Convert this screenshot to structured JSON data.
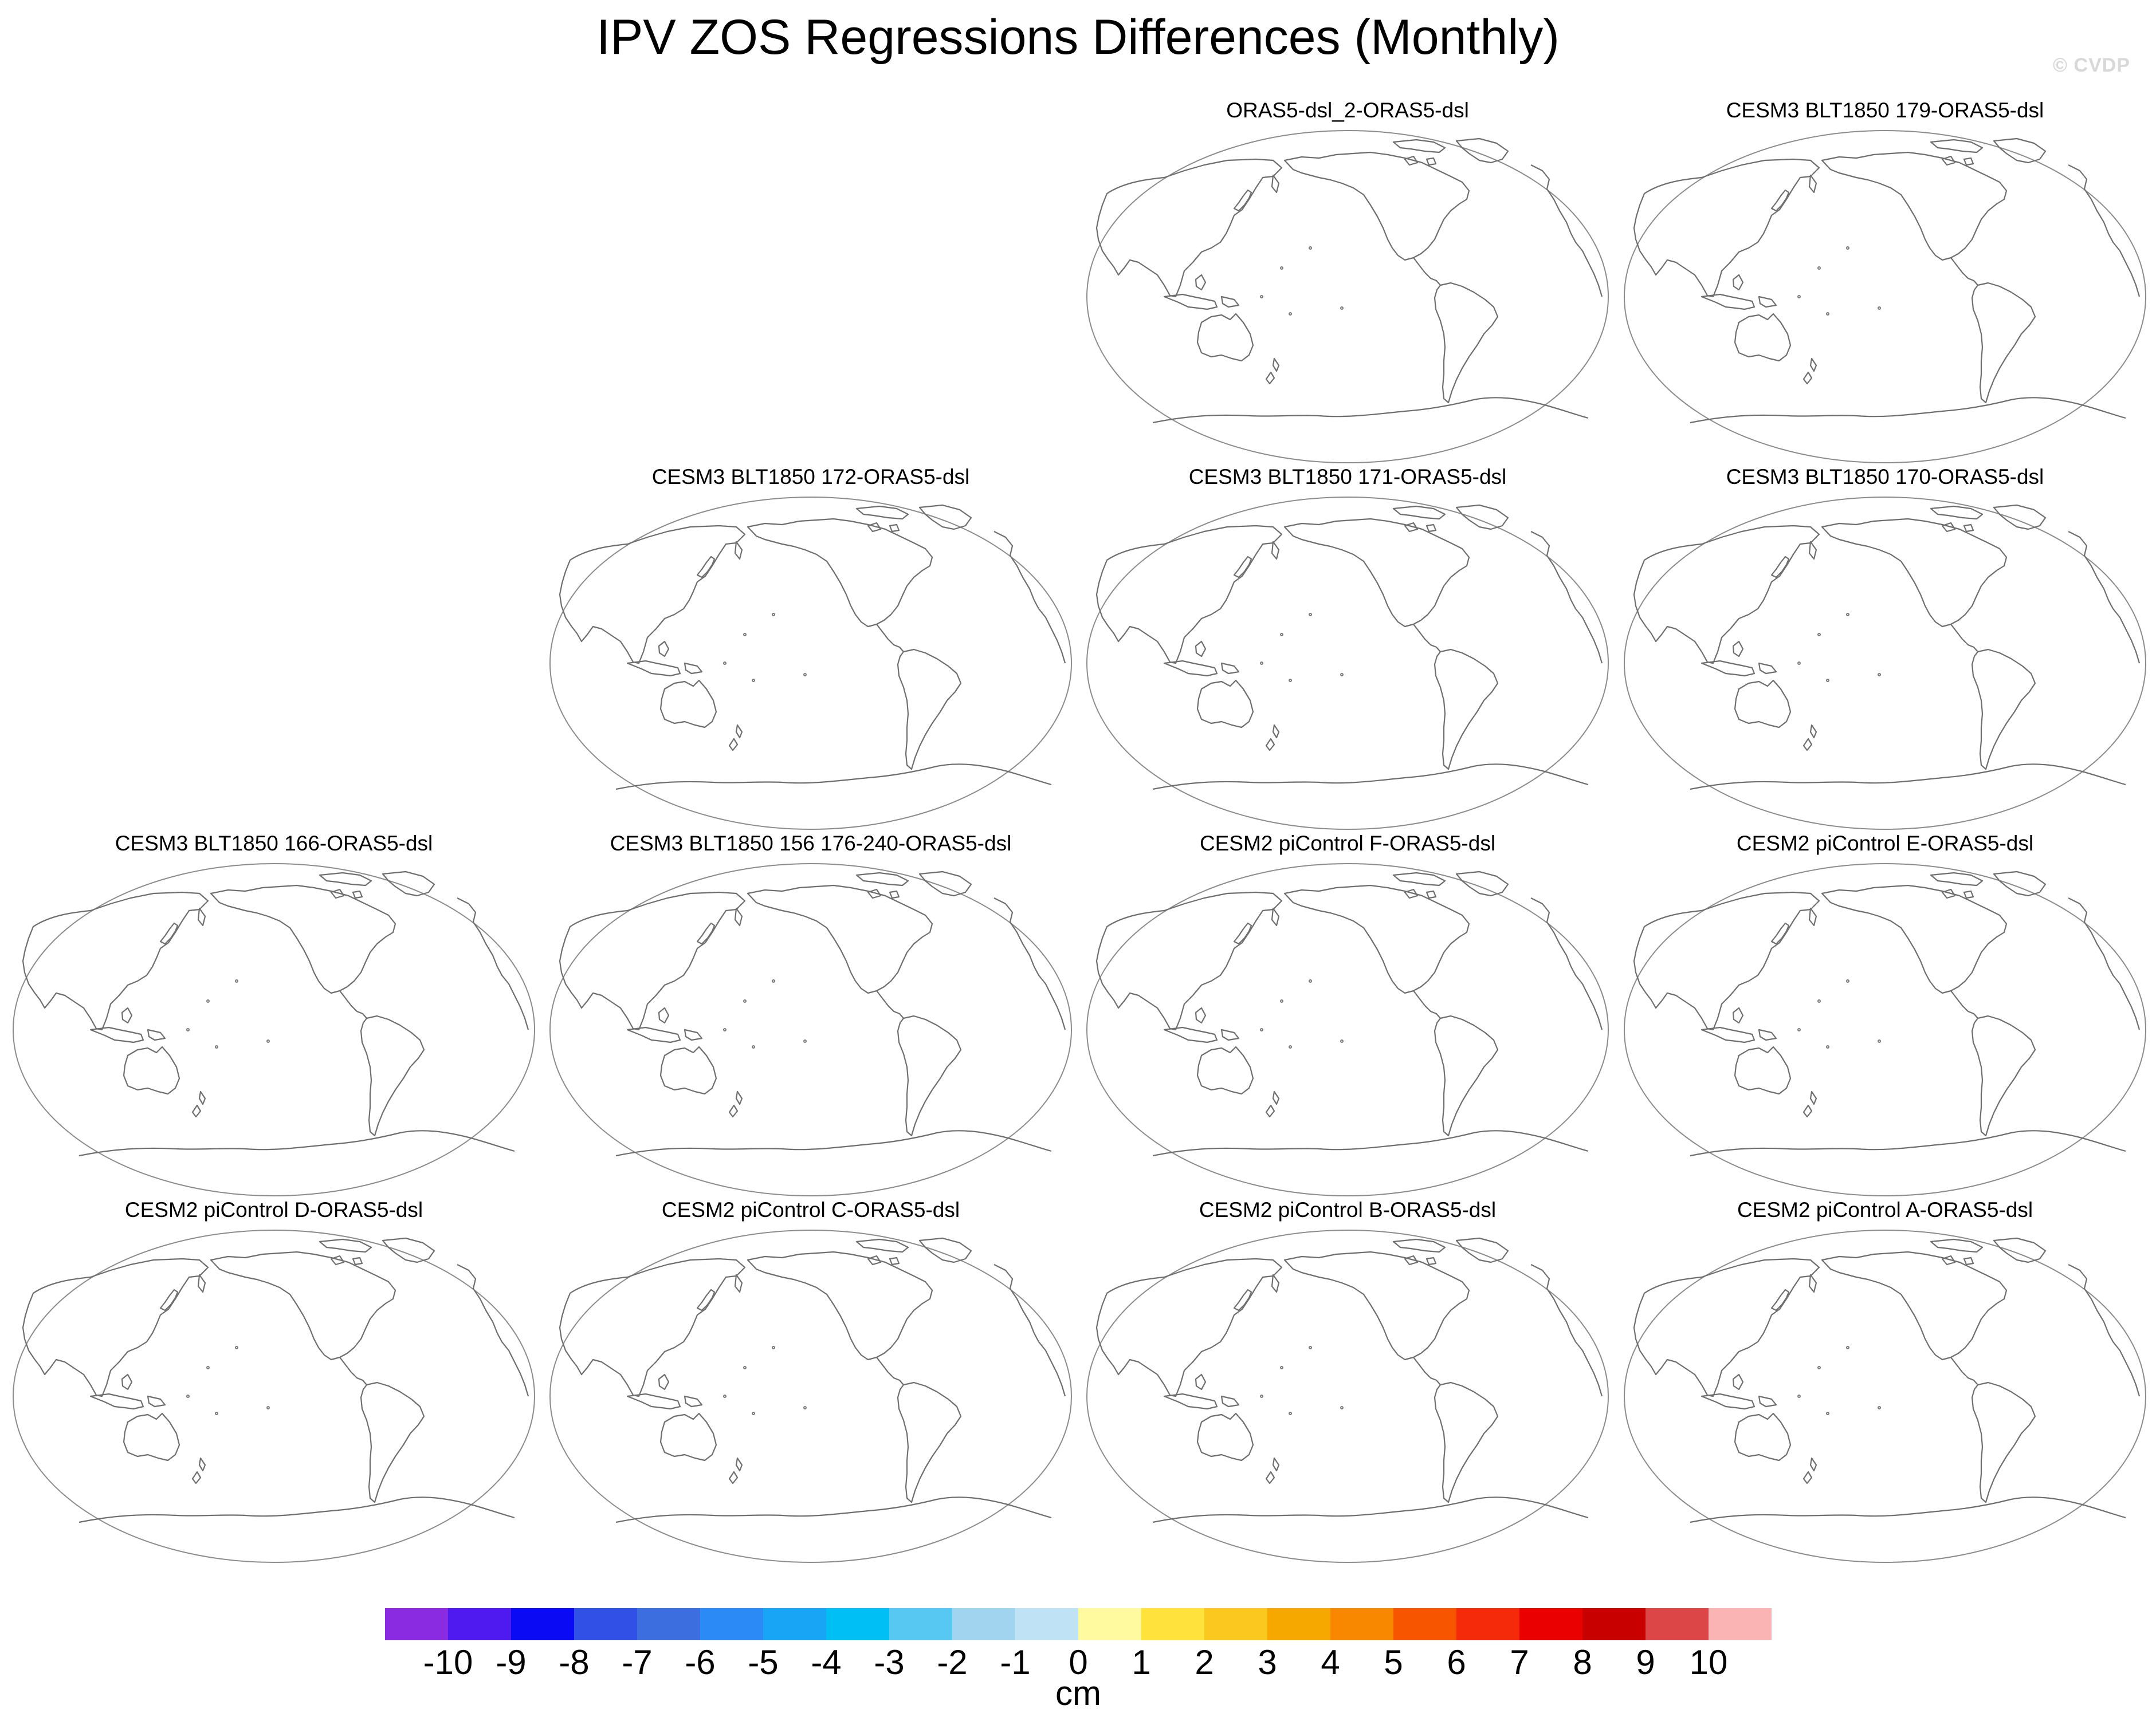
{
  "title": "IPV ZOS Regressions Differences (Monthly)",
  "watermark": "© CVDP",
  "panels": [
    {
      "label": "ORAS5-dsl_2-ORAS5-dsl"
    },
    {
      "label": "CESM3 BLT1850 179-ORAS5-dsl"
    },
    {
      "label": "CESM3 BLT1850 172-ORAS5-dsl"
    },
    {
      "label": "CESM3 BLT1850 171-ORAS5-dsl"
    },
    {
      "label": "CESM3 BLT1850 170-ORAS5-dsl"
    },
    {
      "label": "CESM3 BLT1850 166-ORAS5-dsl"
    },
    {
      "label": "CESM3 BLT1850 156 176-240-ORAS5-dsl"
    },
    {
      "label": "CESM2 piControl F-ORAS5-dsl"
    },
    {
      "label": "CESM2 piControl E-ORAS5-dsl"
    },
    {
      "label": "CESM2 piControl D-ORAS5-dsl"
    },
    {
      "label": "CESM2 piControl C-ORAS5-dsl"
    },
    {
      "label": "CESM2 piControl B-ORAS5-dsl"
    },
    {
      "label": "CESM2 piControl A-ORAS5-dsl"
    }
  ],
  "colorbar": {
    "unit": "cm",
    "labels": [
      "-10",
      "-9",
      "-8",
      "-7",
      "-6",
      "-5",
      "-4",
      "-3",
      "-2",
      "-1",
      "0",
      "1",
      "2",
      "3",
      "4",
      "5",
      "6",
      "7",
      "8",
      "9",
      "10"
    ],
    "colors": [
      "#8a2be2",
      "#4f1af0",
      "#0a0af5",
      "#3050e6",
      "#3c6ee0",
      "#2b8af5",
      "#19a5f5",
      "#00bff5",
      "#57c8f2",
      "#a0d4ef",
      "#bfe3f5",
      "#fffaa0",
      "#ffe33c",
      "#fac81e",
      "#f7a800",
      "#f78800",
      "#f75500",
      "#f52a0a",
      "#eb0000",
      "#c80000",
      "#dc4646",
      "#fab4b4"
    ]
  }
}
